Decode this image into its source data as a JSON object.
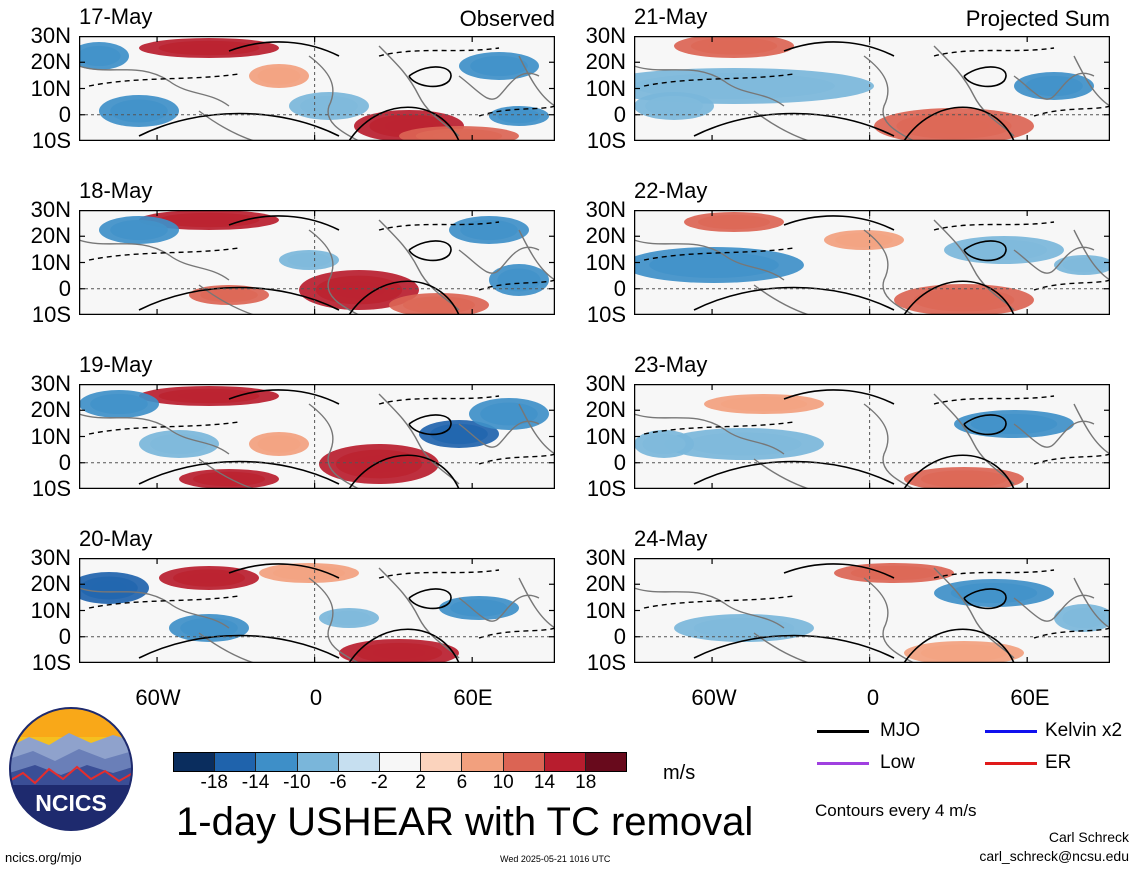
{
  "panels": [
    {
      "date": "17-May",
      "corner": "Observed",
      "col": 0,
      "row": 0
    },
    {
      "date": "18-May",
      "corner": "",
      "col": 0,
      "row": 1
    },
    {
      "date": "19-May",
      "corner": "",
      "col": 0,
      "row": 2
    },
    {
      "date": "20-May",
      "corner": "",
      "col": 0,
      "row": 3
    },
    {
      "date": "21-May",
      "corner": "Projected Sum",
      "col": 1,
      "row": 0
    },
    {
      "date": "22-May",
      "corner": "",
      "col": 1,
      "row": 1
    },
    {
      "date": "23-May",
      "corner": "",
      "col": 1,
      "row": 2
    },
    {
      "date": "24-May",
      "corner": "",
      "col": 1,
      "row": 3
    }
  ],
  "lat_labels": [
    "30N",
    "20N",
    "10N",
    "0",
    "10S"
  ],
  "lon_labels": [
    "60W",
    "0",
    "60E"
  ],
  "colorbar": {
    "colors": [
      "#0a2d5e",
      "#1f63ac",
      "#3e8fc8",
      "#7ab6da",
      "#c6dff0",
      "#f7f7f7",
      "#fbd3bd",
      "#f2a07e",
      "#db6454",
      "#b81d2e",
      "#680a1c"
    ],
    "ticks": [
      "-18",
      "-14",
      "-10",
      "-6",
      "-2",
      "2",
      "6",
      "10",
      "14",
      "18"
    ]
  },
  "units": "m/s",
  "title": "1-day USHEAR with TC removal",
  "legend": [
    {
      "label": "MJO",
      "color": "#000000"
    },
    {
      "label": "Kelvin x2",
      "color": "#1010ee"
    },
    {
      "label": "Low",
      "color": "#a040e0"
    },
    {
      "label": "ER",
      "color": "#e01a1a"
    }
  ],
  "contour_note": "Contours every 4 m/s",
  "credit_name": "Carl Schreck",
  "credit_email": "carl_schreck@ncsu.edu",
  "site": "ncics.org/mjo",
  "timestamp": "Wed 2025-05-21 1016 UTC",
  "logo_text": "NCICS"
}
